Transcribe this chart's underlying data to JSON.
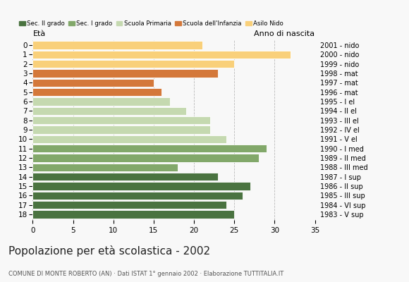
{
  "ages": [
    18,
    17,
    16,
    15,
    14,
    13,
    12,
    11,
    10,
    9,
    8,
    7,
    6,
    5,
    4,
    3,
    2,
    1,
    0
  ],
  "values": [
    25,
    24,
    26,
    27,
    23,
    18,
    28,
    29,
    24,
    22,
    22,
    19,
    17,
    16,
    15,
    23,
    25,
    32,
    21
  ],
  "anno_nascita": [
    "1983 - V sup",
    "1984 - VI sup",
    "1985 - III sup",
    "1986 - II sup",
    "1987 - I sup",
    "1988 - III med",
    "1989 - II med",
    "1990 - I med",
    "1991 - V el",
    "1992 - IV el",
    "1993 - III el",
    "1994 - II el",
    "1995 - I el",
    "1996 - mat",
    "1997 - mat",
    "1998 - mat",
    "1999 - nido",
    "2000 - nido",
    "2001 - nido"
  ],
  "categories": {
    "sec2": {
      "ages": [
        18,
        17,
        16,
        15,
        14
      ],
      "color": "#4a7340"
    },
    "sec1": {
      "ages": [
        13,
        12,
        11
      ],
      "color": "#82a86a"
    },
    "primaria": {
      "ages": [
        10,
        9,
        8,
        7,
        6
      ],
      "color": "#c5d9b0"
    },
    "infanzia": {
      "ages": [
        5,
        4,
        3
      ],
      "color": "#d4783a"
    },
    "nido": {
      "ages": [
        2,
        1,
        0
      ],
      "color": "#f9d07a"
    }
  },
  "legend_labels": [
    "Sec. II grado",
    "Sec. I grado",
    "Scuola Primaria",
    "Scuola dell'Infanzia",
    "Asilo Nido"
  ],
  "legend_colors": [
    "#4a7340",
    "#82a86a",
    "#c5d9b0",
    "#d4783a",
    "#f9d07a"
  ],
  "title": "Popolazione per età scolastica - 2002",
  "subtitle": "COMUNE DI MONTE ROBERTO (AN) · Dati ISTAT 1° gennaio 2002 · Elaborazione TUTTITALIA.IT",
  "xlabel_left": "Età",
  "xlabel_right": "Anno di nascita",
  "xlim": [
    0,
    35
  ],
  "xticks": [
    0,
    5,
    10,
    15,
    20,
    25,
    30,
    35
  ],
  "background_color": "#f8f8f8"
}
